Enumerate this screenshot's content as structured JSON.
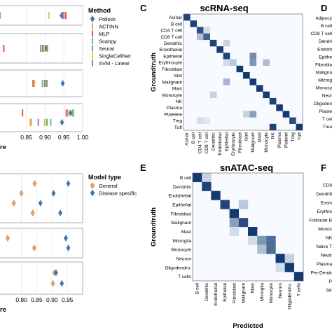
{
  "panels": {
    "C": {
      "letter": "C",
      "title": "scRNA-seq"
    },
    "D": {
      "letter": "D"
    },
    "E": {
      "letter": "E",
      "title": "snATAC-seq"
    },
    "F": {
      "letter": "F"
    }
  },
  "chart_data": [
    {
      "id": "A",
      "type": "scatter",
      "legend_title": "Method",
      "legend_position": "right",
      "xlabel_fragment": "re",
      "x_ticks": [
        "0.85",
        "0.90",
        "0.95",
        "1.00"
      ],
      "xlim": [
        0.78,
        1.0
      ],
      "series": [
        {
          "name": "Pollock",
          "color": "#3b78b5",
          "marker": "diamond"
        },
        {
          "name": "ACTINN",
          "color": "#f4a259",
          "marker": "bar"
        },
        {
          "name": "MLP",
          "color": "#d9534f",
          "marker": "bar"
        },
        {
          "name": "Scanpy",
          "color": "#5fb8b0",
          "marker": "bar"
        },
        {
          "name": "Seurat",
          "color": "#5cb85c",
          "marker": "bar"
        },
        {
          "name": "SingleCellNet",
          "color": "#e8c547",
          "marker": "bar"
        },
        {
          "name": "SVM - Linear",
          "color": "#a86fb0",
          "marker": "bar"
        }
      ],
      "rows": [
        {
          "Pollock": 0.944,
          "ACTINN": 0.953,
          "MLP": 0.955,
          "Scanpy": 0.78,
          "Seurat": 0.947,
          "SingleCellNet": 0.91,
          "SVM - Linear": 0.948
        },
        {
          "Pollock": 0.902,
          "ACTINN": 0.895,
          "MLP": 0.79,
          "Scanpy": 0.888,
          "Seurat": 0.906,
          "SingleCellNet": 0.898,
          "SVM - Linear": 0.893
        },
        {
          "Pollock": 0.947,
          "ACTINN": 0.902,
          "MLP": 0.868,
          "Scanpy": 0.893,
          "Seurat": 0.905,
          "SingleCellNet": 0.872,
          "SVM - Linear": 0.899
        },
        {
          "Pollock": 0.968,
          "ACTINN": 0.956,
          "MLP": 0.84,
          "Scanpy": 0.974,
          "Seurat": 0.975,
          "SingleCellNet": 0.962,
          "SVM - Linear": 0.958
        },
        {
          "Pollock": 0.945,
          "ACTINN": 0.899,
          "MLP": 0.862,
          "Scanpy": 0.915,
          "Seurat": 0.905,
          "SingleCellNet": 0.86,
          "SVM - Linear": 0.882
        }
      ]
    },
    {
      "id": "B",
      "type": "scatter",
      "legend_title": "Model type",
      "legend_position": "right",
      "xlabel_fragment": "re",
      "x_ticks": [
        "0.80",
        "0.85",
        "0.90",
        "0.95"
      ],
      "xlim": [
        0.73,
        1.0
      ],
      "series": [
        {
          "name": "General",
          "color": "#f4a259",
          "marker": "diamond"
        },
        {
          "name": "Disease specific",
          "color": "#3b78b5",
          "marker": "diamond"
        }
      ],
      "rows": [
        {
          "General": 0.843,
          "Disease specific": 0.953
        },
        {
          "General": 0.8,
          "Disease specific": 0.905
        },
        {
          "General": 0.775,
          "Disease specific": 0.862
        },
        {
          "General": 0.837,
          "Disease specific": 0.927
        },
        {
          "General": 0.755,
          "Disease specific": 0.945
        },
        {
          "General": 0.842,
          "Disease specific": 0.953
        },
        {
          "General": 0.908,
          "Disease specific": 0.913
        },
        {
          "General": 0.903,
          "Disease specific": 0.932
        }
      ]
    },
    {
      "id": "C",
      "type": "heatmap",
      "title": "scRNA-seq",
      "ylabel": "Groundtruth",
      "rows": [
        "Acinar",
        "B cell",
        "CD4 T cell",
        "CD8 T cell",
        "Dendritic",
        "Endothelial",
        "Epithelial",
        "Erythrocyte",
        "Fibroblast",
        "Islet",
        "Malignant",
        "Mast",
        "Monocyte",
        "NK",
        "Plasma",
        "Platelete",
        "Treg",
        "Tuft"
      ],
      "cols": [
        "Acinar",
        "B cell",
        "CD4 T cell",
        "CD8 T cell",
        "Dendritic",
        "Endothelial",
        "Epithelial",
        "Erythrocyte",
        "Fibroblast",
        "Islet",
        "Malignant",
        "Mast",
        "Monocyte",
        "NK",
        "Plasma",
        "Platelet",
        "Treg",
        "Tuft"
      ],
      "diagonal": [
        0.9,
        0.9,
        0.85,
        0.75,
        0.9,
        0.95,
        0.9,
        0.25,
        0.95,
        0.95,
        0.95,
        0.95,
        0.95,
        0.9,
        0.95,
        0.95,
        0.85,
        0.95
      ],
      "off_diagonal": [
        [
          3,
          2,
          0.3
        ],
        [
          2,
          3,
          0.15
        ],
        [
          4,
          6,
          0.2
        ],
        [
          6,
          10,
          0.55
        ],
        [
          7,
          6,
          0.15
        ],
        [
          7,
          10,
          0.5
        ],
        [
          7,
          12,
          0.3
        ],
        [
          10,
          6,
          0.35
        ],
        [
          12,
          4,
          0.2
        ],
        [
          15,
          9,
          0.2
        ],
        [
          15,
          10,
          0.45
        ],
        [
          16,
          2,
          0.15
        ],
        [
          16,
          3,
          0.1
        ],
        [
          17,
          13,
          0.9
        ]
      ]
    },
    {
      "id": "E",
      "type": "heatmap",
      "title": "snATAC-seq",
      "xlabel": "Predicted",
      "ylabel": "Groundtruth",
      "rows": [
        "B cell",
        "Dendritic",
        "Endothelial",
        "Epithelial",
        "Fibroblast",
        "Malignant",
        "Mast",
        "Microglia",
        "Monocyte",
        "Neuron",
        "Oligodendro.",
        "T cells"
      ],
      "cols": [
        "B cell",
        "Dendritic",
        "Endothelial",
        "Epithelial",
        "Fibroblast",
        "Malignant",
        "Mast",
        "Microglia",
        "Monocyte",
        "Neuron",
        "Oligodendro.",
        "T cells"
      ],
      "diagonal": [
        0.95,
        0.9,
        0.95,
        0.9,
        0.95,
        0.85,
        0.95,
        0.5,
        0.7,
        0.95,
        0.95,
        0.95
      ],
      "off_diagonal": [
        [
          0,
          1,
          0.2
        ],
        [
          3,
          5,
          0.25
        ],
        [
          5,
          4,
          0.45
        ],
        [
          6,
          4,
          0.15
        ],
        [
          7,
          8,
          0.7
        ],
        [
          7,
          6,
          0.15
        ],
        [
          8,
          7,
          0.3
        ],
        [
          9,
          10,
          0.2
        ],
        [
          10,
          9,
          0.15
        ]
      ]
    },
    {
      "id": "D",
      "type": "heatmap",
      "rows": [
        "Adipocy",
        "B cell",
        "CD8 T cell",
        "Dendri",
        "Endoth",
        "Epithe",
        "Fibrobla",
        "Maligna",
        "Microg",
        "Monocy",
        "Neur",
        "Oligoden",
        "Plaste",
        "T cel",
        "Trea"
      ],
      "diagonal_only": true
    },
    {
      "id": "F",
      "type": "heatmap",
      "rows": [
        "CD8",
        "Dendriti",
        "Eosin",
        "Erythro",
        "Follicular B",
        "Monoc",
        "NK",
        "Naive T",
        "Neutr",
        "Plasma",
        "Pre-Dendr",
        "P",
        "Str"
      ],
      "diagonal_only": true
    }
  ]
}
